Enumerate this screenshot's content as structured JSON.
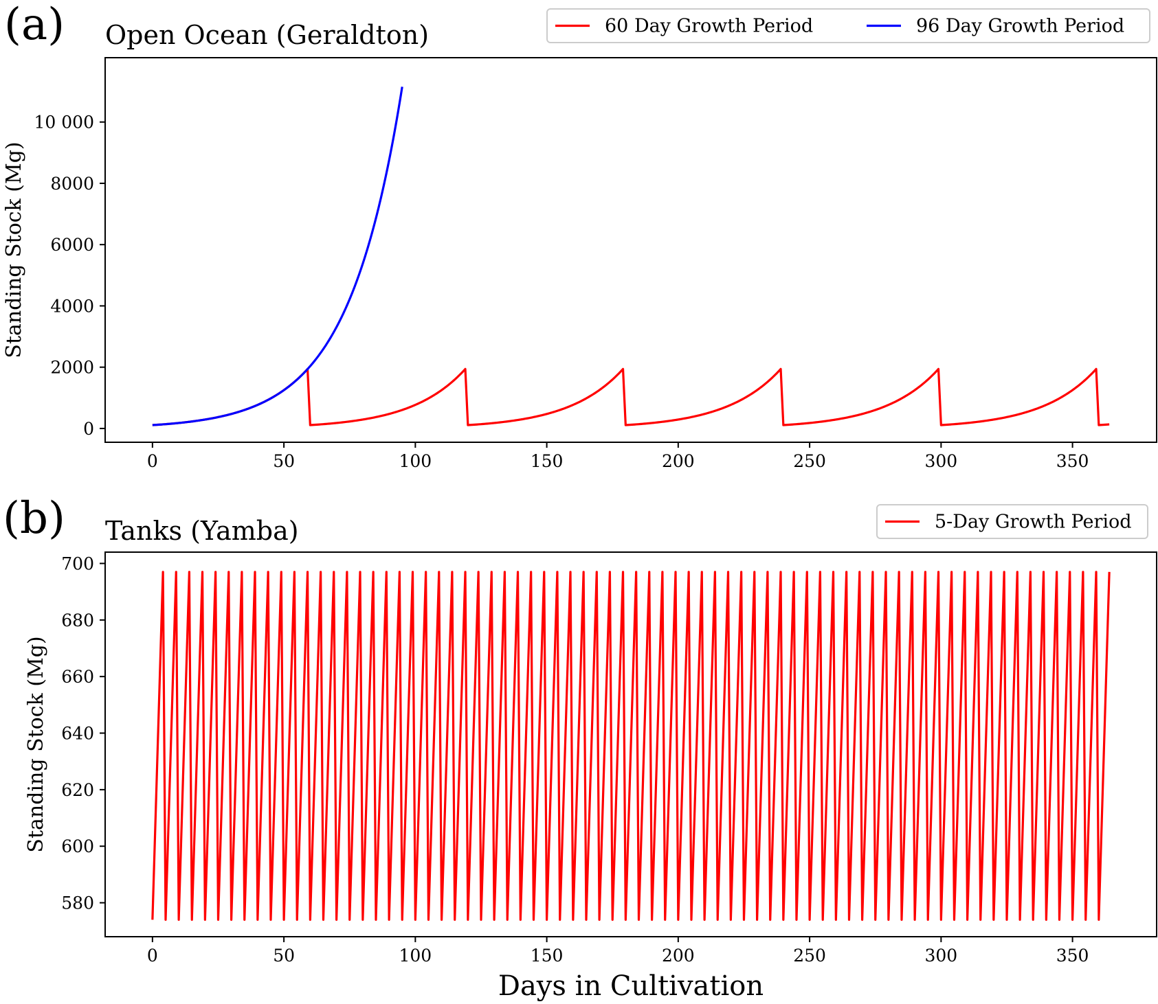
{
  "chart_data": [
    {
      "type": "line",
      "panel_label": "(a)",
      "title": "Open Ocean (Geraldton)",
      "xlabel": "",
      "ylabel": "Standing Stock (Mg)",
      "xlim": [
        -18,
        382
      ],
      "ylim": [
        -450,
        12100
      ],
      "xticks": [
        0,
        50,
        100,
        150,
        200,
        250,
        300,
        350
      ],
      "xtick_labels": [
        "0",
        "50",
        "100",
        "150",
        "200",
        "250",
        "300",
        "350"
      ],
      "yticks": [
        0,
        2000,
        4000,
        6000,
        8000,
        10000
      ],
      "ytick_labels": [
        "0",
        "2000",
        "4000",
        "6000",
        "8000",
        "10 000"
      ],
      "legend_position": "above-right",
      "series": [
        {
          "name": "60 Day Growth Period",
          "color": "#ff0000",
          "model": "exponential-sawtooth",
          "x_range": [
            0,
            364
          ],
          "cycle_days": 60,
          "start_value": 110,
          "peak_value": 1940
        },
        {
          "name": "96 Day Growth Period",
          "color": "#0000ff",
          "model": "exponential",
          "x_range": [
            0,
            95
          ],
          "start_value": 110,
          "end_value": 11150
        }
      ]
    },
    {
      "type": "line",
      "panel_label": "(b)",
      "title": "Tanks (Yamba)",
      "xlabel": "Days in Cultivation",
      "ylabel": "Standing Stock (Mg)",
      "xlim": [
        -18,
        382
      ],
      "ylim": [
        568,
        704
      ],
      "xticks": [
        0,
        50,
        100,
        150,
        200,
        250,
        300,
        350
      ],
      "xtick_labels": [
        "0",
        "50",
        "100",
        "150",
        "200",
        "250",
        "300",
        "350"
      ],
      "yticks": [
        580,
        600,
        620,
        640,
        660,
        680,
        700
      ],
      "ytick_labels": [
        "580",
        "600",
        "620",
        "640",
        "660",
        "680",
        "700"
      ],
      "legend_position": "above-right",
      "series": [
        {
          "name": "5-Day Growth Period",
          "color": "#ff0000",
          "model": "sawtooth",
          "x_range": [
            0,
            364
          ],
          "cycle_days": 5,
          "start_value": 574,
          "peak_value": 697
        }
      ]
    }
  ]
}
